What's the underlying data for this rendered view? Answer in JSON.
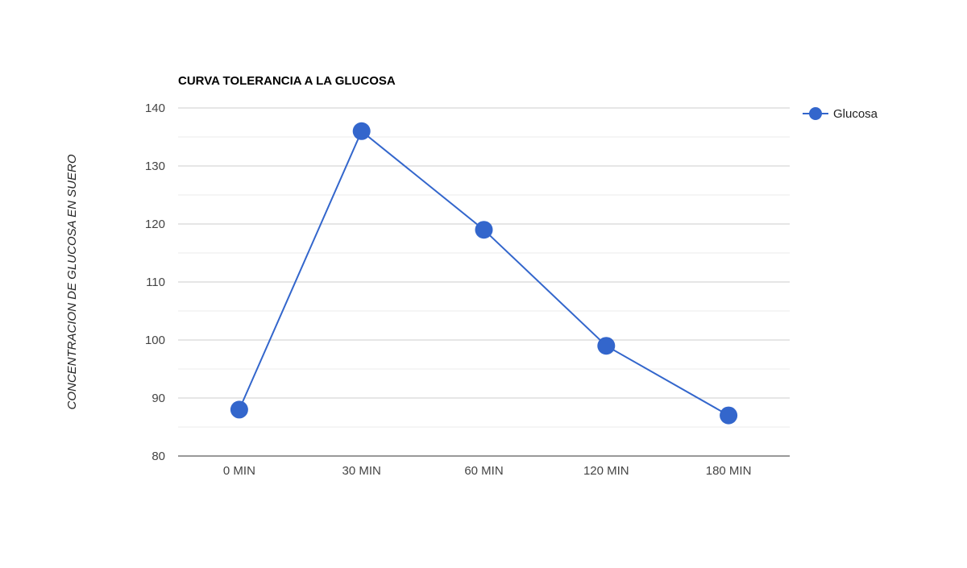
{
  "chart_data": {
    "type": "line",
    "title": "CURVA TOLERANCIA A LA GLUCOSA",
    "xlabel": "",
    "ylabel": "CONCENTRACION DE GLUCOSA EN SUERO",
    "categories": [
      "0 MIN",
      "30 MIN",
      "60 MIN",
      "120 MIN",
      "180 MIN"
    ],
    "series": [
      {
        "name": "Glucosa",
        "color": "#3366cc",
        "values": [
          88,
          136,
          119,
          99,
          87
        ]
      }
    ],
    "ylim": [
      80,
      140
    ],
    "yticks": [
      80,
      90,
      100,
      110,
      120,
      130,
      140
    ],
    "grid": true,
    "legend_position": "right"
  }
}
